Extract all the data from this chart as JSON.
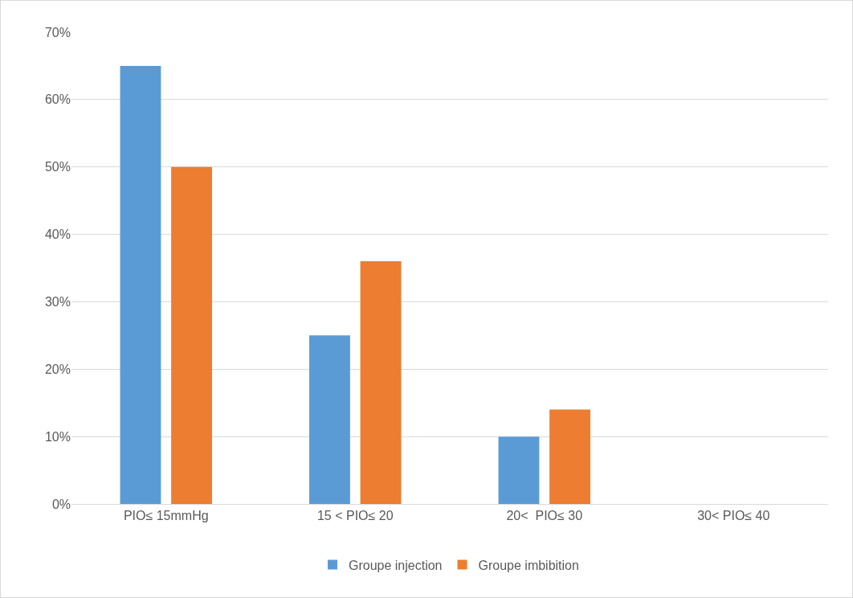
{
  "chart_data": {
    "type": "bar",
    "categories": [
      "PIO≤ 15mmHg",
      "15 < PIO≤ 20",
      "20<  PIO≤ 30",
      "30< PIO≤ 40"
    ],
    "series": [
      {
        "name": "Groupe injection",
        "color": "#5b9bd5",
        "values": [
          65,
          25,
          10,
          0
        ]
      },
      {
        "name": "Groupe imbibition",
        "color": "#ed7d31",
        "values": [
          50,
          36,
          14,
          0
        ]
      }
    ],
    "ylim": [
      0,
      70
    ],
    "yticks": [
      {
        "value": 0,
        "label": "0%"
      },
      {
        "value": 10,
        "label": "10%"
      },
      {
        "value": 20,
        "label": "20%"
      },
      {
        "value": 30,
        "label": "30%"
      },
      {
        "value": 40,
        "label": "40%"
      },
      {
        "value": 50,
        "label": "50%"
      },
      {
        "value": 60,
        "label": "60%"
      },
      {
        "value": 70,
        "label": "70%"
      }
    ],
    "grid": "y",
    "legend": "bottom"
  }
}
